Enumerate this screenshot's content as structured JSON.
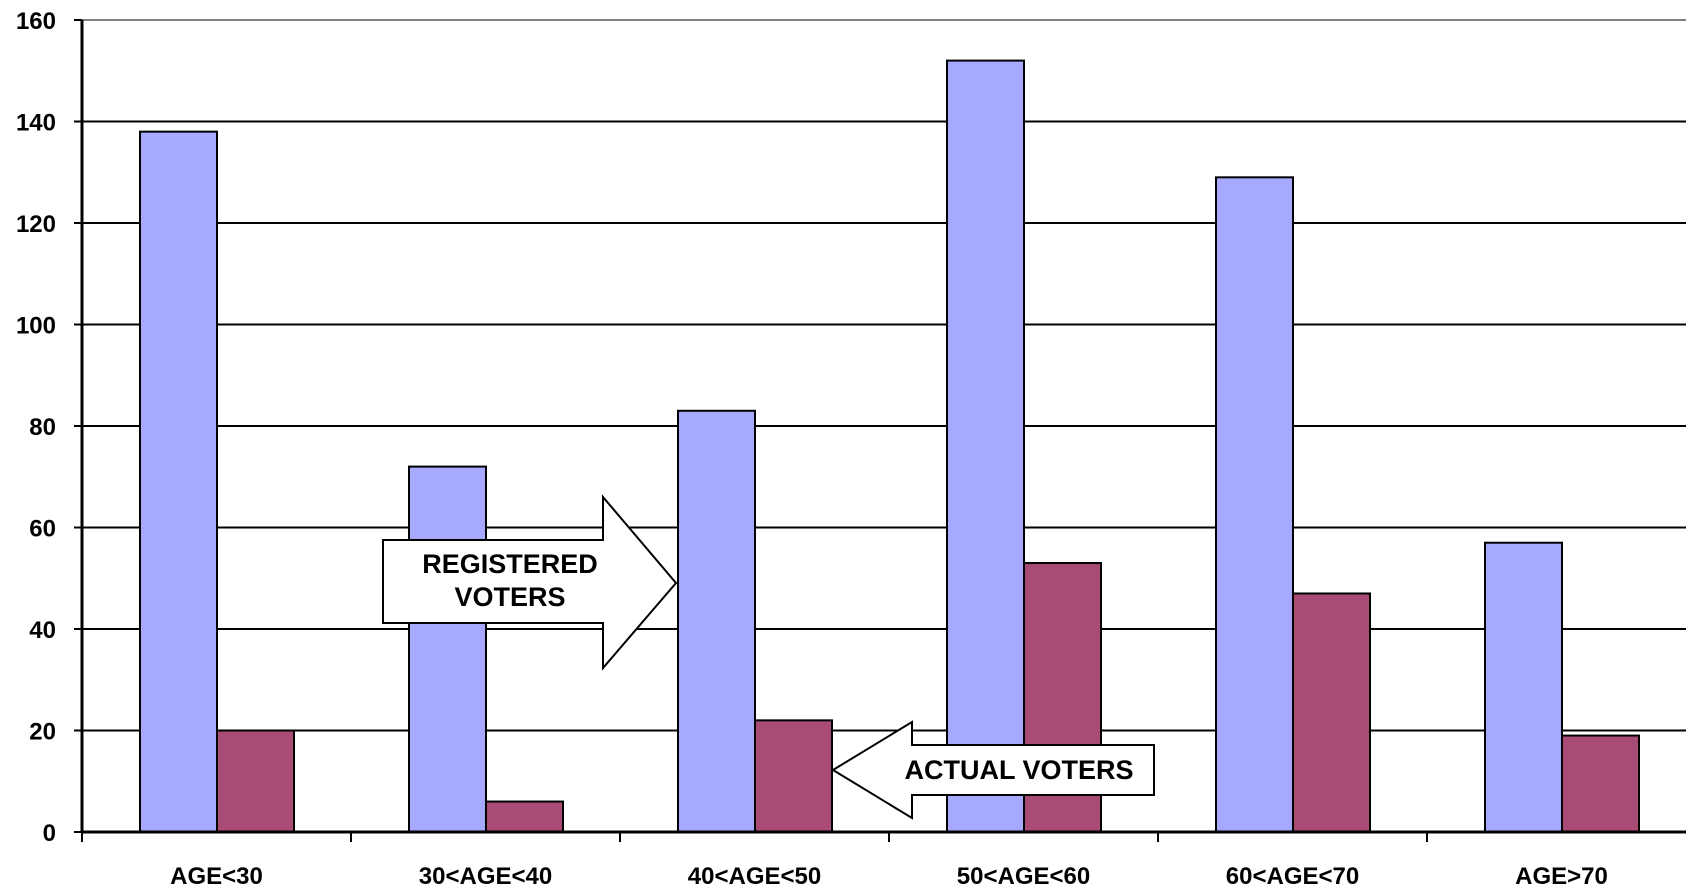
{
  "chart_data": {
    "type": "bar",
    "categories": [
      "AGE<30",
      "30<AGE<40",
      "40<AGE<50",
      "50<AGE<60",
      "60<AGE<70",
      "AGE>70"
    ],
    "series": [
      {
        "values": [
          138,
          72,
          83,
          152,
          129,
          57
        ],
        "color": "#a6a9fd"
      },
      {
        "values": [
          20,
          6,
          22,
          53,
          47,
          19
        ],
        "color": "#a84b75"
      }
    ],
    "y_ticks": [
      0,
      20,
      40,
      60,
      80,
      100,
      120,
      140,
      160
    ],
    "ylim": [
      0,
      160
    ],
    "grid": true,
    "annotations": [
      {
        "text_lines": [
          "REGISTERED",
          "VOTERS"
        ],
        "points_to": "40<AGE<50"
      },
      {
        "text_lines": [
          "ACTUAL VOTERS"
        ],
        "points_to": "40<AGE<50"
      }
    ]
  }
}
